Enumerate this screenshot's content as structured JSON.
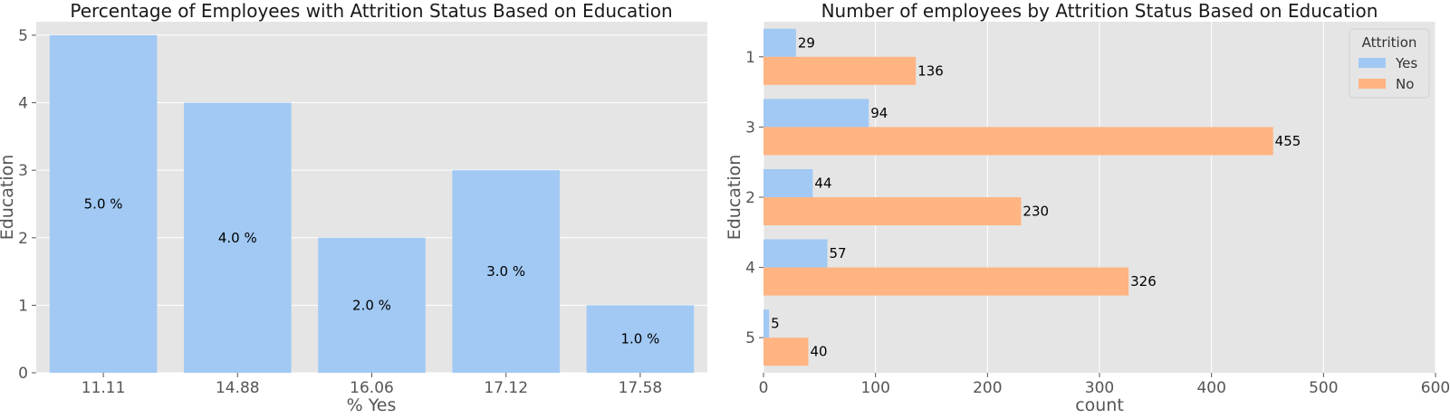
{
  "chart_data": [
    {
      "type": "bar",
      "title": "Percentage of Employees with Attrition Status Based on Education",
      "xlabel": "% Yes",
      "ylabel": "Education",
      "categories": [
        "11.11",
        "14.88",
        "16.06",
        "17.12",
        "17.58"
      ],
      "values": [
        5,
        4,
        2,
        3,
        1
      ],
      "data_labels": [
        "5.0 %",
        "4.0 %",
        "2.0 %",
        "3.0 %",
        "1.0 %"
      ],
      "yticks": [
        "0",
        "1",
        "2",
        "3",
        "4",
        "5"
      ],
      "ylim": [
        0,
        5.2
      ],
      "grid": true,
      "color": "#a1c9f4",
      "background": "#e5e5e5"
    },
    {
      "type": "bar",
      "orientation": "horizontal",
      "title": "Number of employees by Attrition Status Based on Education",
      "xlabel": "count",
      "ylabel": "Education",
      "categories": [
        "1",
        "3",
        "2",
        "4",
        "5"
      ],
      "series": [
        {
          "name": "Yes",
          "values": [
            29,
            94,
            44,
            57,
            5
          ],
          "color": "#a1c9f4"
        },
        {
          "name": "No",
          "values": [
            136,
            455,
            230,
            326,
            40
          ],
          "color": "#ffb482"
        }
      ],
      "xticks": [
        "0",
        "100",
        "200",
        "300",
        "400",
        "500",
        "600"
      ],
      "xlim": [
        0,
        600
      ],
      "legend_title": "Attrition",
      "legend_position": "top-right",
      "grid": true,
      "background": "#e5e5e5"
    }
  ]
}
